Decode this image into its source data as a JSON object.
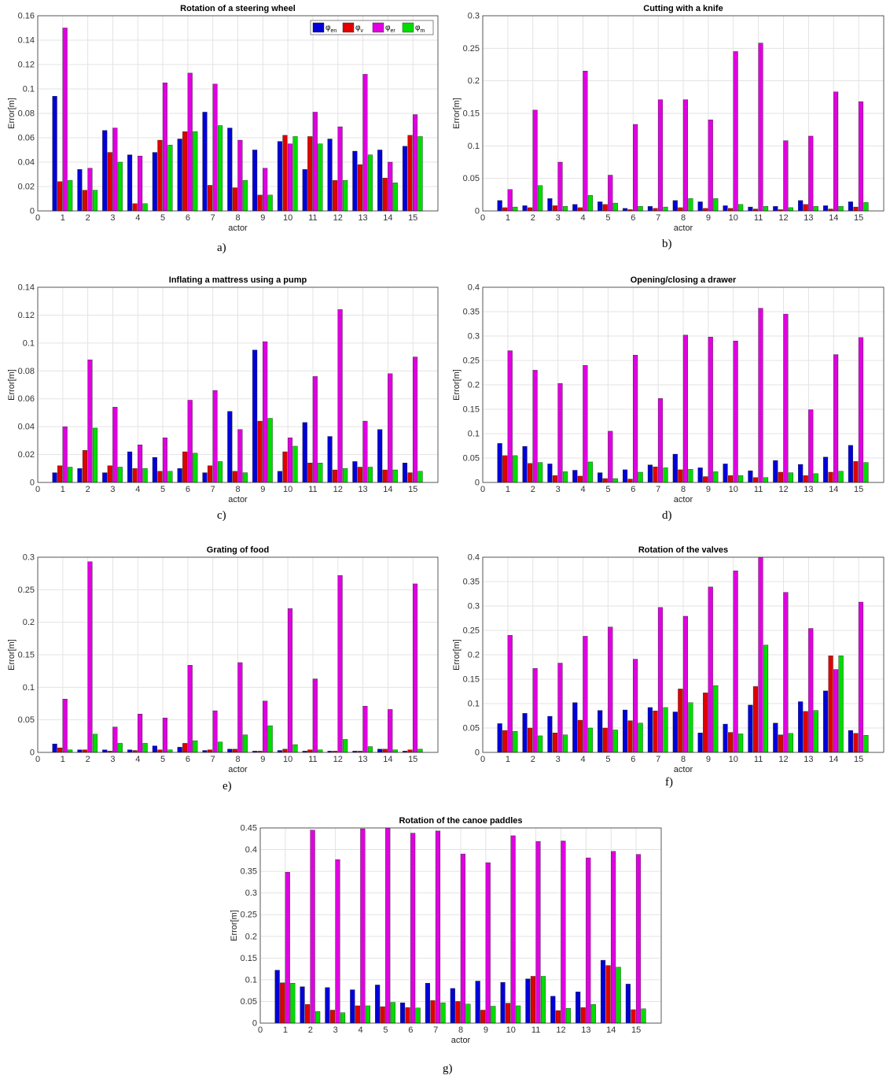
{
  "legend_labels": [
    {
      "base": "φ",
      "sub": "en"
    },
    {
      "base": "φ",
      "sub": "v"
    },
    {
      "base": "φ",
      "sub": "er"
    },
    {
      "base": "φ",
      "sub": "m"
    }
  ],
  "series_colors": [
    "#0000d8",
    "#e00000",
    "#e000e0",
    "#00dc00"
  ],
  "captions": [
    "a)",
    "b)",
    "c)",
    "d)",
    "e)",
    "f)",
    "g)"
  ],
  "chart_data": [
    {
      "type": "bar",
      "title": "Rotation of a steering wheel",
      "xlabel": "actor",
      "ylabel": "Error[m]",
      "categories": [
        1,
        2,
        3,
        4,
        5,
        6,
        7,
        8,
        9,
        10,
        11,
        12,
        13,
        14,
        15
      ],
      "xlim": [
        0,
        16
      ],
      "xticks": [
        0,
        1,
        2,
        3,
        4,
        5,
        6,
        7,
        8,
        9,
        10,
        11,
        12,
        13,
        14,
        15
      ],
      "ylim": [
        0,
        0.16
      ],
      "yticks": [
        0,
        0.02,
        0.04,
        0.06,
        0.08,
        0.1,
        0.12,
        0.14,
        0.16
      ],
      "grid": true,
      "legend": "top-right",
      "series": [
        {
          "values": [
            0.094,
            0.034,
            0.066,
            0.046,
            0.048,
            0.059,
            0.081,
            0.068,
            0.05,
            0.057,
            0.034,
            0.059,
            0.049,
            0.05,
            0.053
          ]
        },
        {
          "values": [
            0.024,
            0.017,
            0.048,
            0.006,
            0.058,
            0.065,
            0.021,
            0.019,
            0.013,
            0.062,
            0.061,
            0.025,
            0.038,
            0.027,
            0.062
          ]
        },
        {
          "values": [
            0.15,
            0.035,
            0.068,
            0.045,
            0.105,
            0.113,
            0.104,
            0.058,
            0.035,
            0.055,
            0.081,
            0.069,
            0.112,
            0.04,
            0.079
          ]
        },
        {
          "values": [
            0.025,
            0.017,
            0.04,
            0.006,
            0.054,
            0.065,
            0.07,
            0.025,
            0.013,
            0.061,
            0.055,
            0.025,
            0.046,
            0.023,
            0.061
          ]
        }
      ]
    },
    {
      "type": "bar",
      "title": "Cutting with a knife",
      "xlabel": "actor",
      "ylabel": "Error[m]",
      "categories": [
        1,
        2,
        3,
        4,
        5,
        6,
        7,
        8,
        9,
        10,
        11,
        12,
        13,
        14,
        15
      ],
      "xlim": [
        0,
        16
      ],
      "xticks": [
        0,
        1,
        2,
        3,
        4,
        5,
        6,
        7,
        8,
        9,
        10,
        11,
        12,
        13,
        14,
        15
      ],
      "ylim": [
        0,
        0.3
      ],
      "yticks": [
        0,
        0.05,
        0.1,
        0.15,
        0.2,
        0.25,
        0.3
      ],
      "grid": true,
      "series": [
        {
          "values": [
            0.016,
            0.008,
            0.019,
            0.01,
            0.014,
            0.004,
            0.007,
            0.016,
            0.014,
            0.008,
            0.006,
            0.007,
            0.016,
            0.008,
            0.014
          ]
        },
        {
          "values": [
            0.005,
            0.005,
            0.008,
            0.005,
            0.01,
            0.002,
            0.004,
            0.005,
            0.004,
            0.004,
            0.003,
            0.002,
            0.01,
            0.003,
            0.006
          ]
        },
        {
          "values": [
            0.033,
            0.155,
            0.075,
            0.215,
            0.055,
            0.133,
            0.171,
            0.171,
            0.14,
            0.245,
            0.258,
            0.108,
            0.115,
            0.183,
            0.168
          ]
        },
        {
          "values": [
            0.006,
            0.039,
            0.007,
            0.024,
            0.012,
            0.007,
            0.006,
            0.019,
            0.019,
            0.01,
            0.007,
            0.005,
            0.007,
            0.007,
            0.013
          ]
        }
      ]
    },
    {
      "type": "bar",
      "title": "Inflating a mattress using a pump",
      "xlabel": "actor",
      "ylabel": "Error[m]",
      "categories": [
        1,
        2,
        3,
        4,
        5,
        6,
        7,
        8,
        9,
        10,
        11,
        12,
        13,
        14,
        15
      ],
      "xlim": [
        0,
        16
      ],
      "xticks": [
        0,
        1,
        2,
        3,
        4,
        5,
        6,
        7,
        8,
        9,
        10,
        11,
        12,
        13,
        14,
        15
      ],
      "ylim": [
        0,
        0.14
      ],
      "yticks": [
        0,
        0.02,
        0.04,
        0.06,
        0.08,
        0.1,
        0.12,
        0.14
      ],
      "grid": true,
      "series": [
        {
          "values": [
            0.007,
            0.01,
            0.007,
            0.022,
            0.018,
            0.01,
            0.007,
            0.051,
            0.095,
            0.008,
            0.043,
            0.033,
            0.015,
            0.038,
            0.014
          ]
        },
        {
          "values": [
            0.012,
            0.023,
            0.012,
            0.01,
            0.008,
            0.022,
            0.012,
            0.008,
            0.044,
            0.022,
            0.014,
            0.009,
            0.011,
            0.009,
            0.007
          ]
        },
        {
          "values": [
            0.04,
            0.088,
            0.054,
            0.027,
            0.032,
            0.059,
            0.066,
            0.038,
            0.101,
            0.032,
            0.076,
            0.124,
            0.044,
            0.078,
            0.09
          ]
        },
        {
          "values": [
            0.011,
            0.039,
            0.011,
            0.01,
            0.008,
            0.021,
            0.015,
            0.007,
            0.046,
            0.026,
            0.014,
            0.01,
            0.011,
            0.009,
            0.008
          ]
        }
      ]
    },
    {
      "type": "bar",
      "title": "Opening/closing a drawer",
      "xlabel": "actor",
      "ylabel": "Error[m]",
      "categories": [
        1,
        2,
        3,
        4,
        5,
        6,
        7,
        8,
        9,
        10,
        11,
        12,
        13,
        14,
        15
      ],
      "xlim": [
        0,
        16
      ],
      "xticks": [
        0,
        1,
        2,
        3,
        4,
        5,
        6,
        7,
        8,
        9,
        10,
        11,
        12,
        13,
        14,
        15
      ],
      "ylim": [
        0,
        0.4
      ],
      "yticks": [
        0,
        0.05,
        0.1,
        0.15,
        0.2,
        0.25,
        0.3,
        0.35,
        0.4
      ],
      "grid": true,
      "series": [
        {
          "values": [
            0.08,
            0.074,
            0.038,
            0.025,
            0.02,
            0.026,
            0.036,
            0.058,
            0.03,
            0.038,
            0.024,
            0.045,
            0.037,
            0.052,
            0.076
          ]
        },
        {
          "values": [
            0.055,
            0.039,
            0.014,
            0.013,
            0.008,
            0.007,
            0.032,
            0.026,
            0.012,
            0.014,
            0.01,
            0.021,
            0.014,
            0.021,
            0.043
          ]
        },
        {
          "values": [
            0.27,
            0.23,
            0.203,
            0.24,
            0.105,
            0.261,
            0.172,
            0.302,
            0.298,
            0.29,
            0.357,
            0.345,
            0.149,
            0.262,
            0.297
          ]
        },
        {
          "values": [
            0.055,
            0.041,
            0.022,
            0.042,
            0.008,
            0.021,
            0.03,
            0.027,
            0.022,
            0.014,
            0.01,
            0.02,
            0.018,
            0.023,
            0.041
          ]
        }
      ]
    },
    {
      "type": "bar",
      "title": "Grating of food",
      "xlabel": "actor",
      "ylabel": "Error[m]",
      "categories": [
        1,
        2,
        3,
        4,
        5,
        6,
        7,
        8,
        9,
        10,
        11,
        12,
        13,
        14,
        15
      ],
      "xlim": [
        0,
        16
      ],
      "xticks": [
        0,
        1,
        2,
        3,
        4,
        5,
        6,
        7,
        8,
        9,
        10,
        11,
        12,
        13,
        14,
        15
      ],
      "ylim": [
        0,
        0.3
      ],
      "yticks": [
        0,
        0.05,
        0.1,
        0.15,
        0.2,
        0.25,
        0.3
      ],
      "grid": true,
      "series": [
        {
          "values": [
            0.013,
            0.004,
            0.004,
            0.004,
            0.01,
            0.008,
            0.003,
            0.005,
            0.002,
            0.003,
            0.002,
            0.002,
            0.002,
            0.005,
            0.002
          ]
        },
        {
          "values": [
            0.007,
            0.004,
            0.002,
            0.003,
            0.004,
            0.014,
            0.004,
            0.005,
            0.002,
            0.005,
            0.004,
            0.002,
            0.002,
            0.005,
            0.004
          ]
        },
        {
          "values": [
            0.082,
            0.293,
            0.039,
            0.059,
            0.053,
            0.134,
            0.064,
            0.138,
            0.079,
            0.221,
            0.113,
            0.272,
            0.071,
            0.066,
            0.259
          ]
        },
        {
          "values": [
            0.004,
            0.028,
            0.014,
            0.014,
            0.004,
            0.018,
            0.016,
            0.027,
            0.041,
            0.012,
            0.004,
            0.02,
            0.009,
            0.004,
            0.005
          ]
        }
      ]
    },
    {
      "type": "bar",
      "title": "Rotation of the valves",
      "xlabel": "actor",
      "ylabel": "Error[m]",
      "categories": [
        1,
        2,
        3,
        4,
        5,
        6,
        7,
        8,
        9,
        10,
        11,
        12,
        13,
        14,
        15
      ],
      "xlim": [
        0,
        16
      ],
      "xticks": [
        0,
        1,
        2,
        3,
        4,
        5,
        6,
        7,
        8,
        9,
        10,
        11,
        12,
        13,
        14,
        15
      ],
      "ylim": [
        0,
        0.4
      ],
      "yticks": [
        0,
        0.05,
        0.1,
        0.15,
        0.2,
        0.25,
        0.3,
        0.35,
        0.4
      ],
      "grid": true,
      "series": [
        {
          "values": [
            0.059,
            0.08,
            0.074,
            0.102,
            0.086,
            0.087,
            0.092,
            0.083,
            0.04,
            0.058,
            0.097,
            0.06,
            0.104,
            0.126,
            0.045
          ]
        },
        {
          "values": [
            0.045,
            0.05,
            0.04,
            0.066,
            0.05,
            0.065,
            0.085,
            0.13,
            0.122,
            0.041,
            0.135,
            0.036,
            0.084,
            0.198,
            0.039
          ]
        },
        {
          "values": [
            0.24,
            0.172,
            0.183,
            0.238,
            0.257,
            0.191,
            0.297,
            0.279,
            0.339,
            0.372,
            0.4,
            0.328,
            0.254,
            0.17,
            0.308
          ]
        },
        {
          "values": [
            0.043,
            0.034,
            0.036,
            0.05,
            0.046,
            0.06,
            0.092,
            0.102,
            0.137,
            0.038,
            0.22,
            0.039,
            0.086,
            0.198,
            0.035
          ]
        }
      ]
    },
    {
      "type": "bar",
      "title": "Rotation of the canoe paddles",
      "xlabel": "actor",
      "ylabel": "Error[m]",
      "categories": [
        1,
        2,
        3,
        4,
        5,
        6,
        7,
        8,
        9,
        10,
        11,
        12,
        13,
        14,
        15
      ],
      "xlim": [
        0,
        16
      ],
      "xticks": [
        0,
        1,
        2,
        3,
        4,
        5,
        6,
        7,
        8,
        9,
        10,
        11,
        12,
        13,
        14,
        15
      ],
      "ylim": [
        0,
        0.45
      ],
      "yticks": [
        0,
        0.05,
        0.1,
        0.15,
        0.2,
        0.25,
        0.3,
        0.35,
        0.4,
        0.45
      ],
      "grid": true,
      "series": [
        {
          "values": [
            0.122,
            0.084,
            0.082,
            0.077,
            0.088,
            0.047,
            0.092,
            0.08,
            0.097,
            0.094,
            0.102,
            0.062,
            0.072,
            0.145,
            0.09
          ]
        },
        {
          "values": [
            0.093,
            0.043,
            0.03,
            0.04,
            0.038,
            0.036,
            0.052,
            0.05,
            0.03,
            0.046,
            0.108,
            0.029,
            0.036,
            0.133,
            0.031
          ]
        },
        {
          "values": [
            0.348,
            0.445,
            0.377,
            0.448,
            0.45,
            0.438,
            0.443,
            0.39,
            0.37,
            0.432,
            0.419,
            0.42,
            0.381,
            0.396,
            0.389
          ]
        },
        {
          "values": [
            0.092,
            0.027,
            0.024,
            0.04,
            0.048,
            0.035,
            0.047,
            0.044,
            0.039,
            0.04,
            0.108,
            0.034,
            0.043,
            0.129,
            0.033
          ]
        }
      ]
    }
  ]
}
